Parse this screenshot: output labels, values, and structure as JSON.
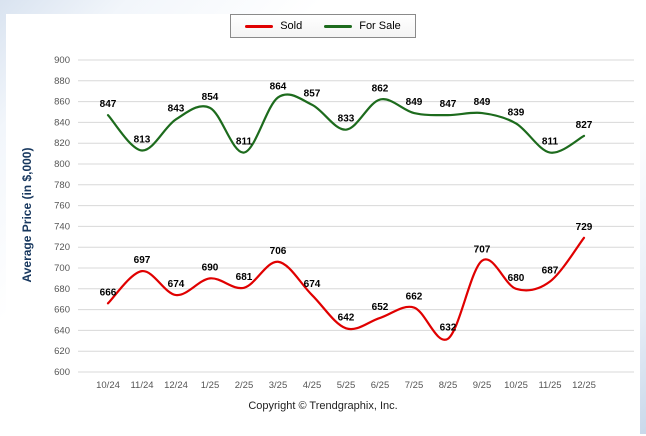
{
  "legend": {
    "items": [
      {
        "label": "Sold",
        "color": "#e00000"
      },
      {
        "label": "For Sale",
        "color": "#1d6b1d"
      }
    ]
  },
  "axis": {
    "ylabel": "Average Price (in $,000)"
  },
  "footer": {
    "text": "Copyright © Trendgraphix, Inc."
  },
  "chart_data": {
    "type": "line",
    "title": "",
    "xlabel": "",
    "ylabel": "Average Price (in $,000)",
    "categories": [
      "10/24",
      "11/24",
      "12/24",
      "1/25",
      "2/25",
      "3/25",
      "4/25",
      "5/25",
      "6/25",
      "7/25",
      "8/25",
      "9/25",
      "10/25",
      "11/25",
      "12/25"
    ],
    "series": [
      {
        "name": "Sold",
        "color": "#e00000",
        "values": [
          666,
          697,
          674,
          690,
          681,
          706,
          674,
          642,
          652,
          662,
          632,
          707,
          680,
          687,
          729
        ]
      },
      {
        "name": "For Sale",
        "color": "#1d6b1d",
        "values": [
          847,
          813,
          843,
          854,
          811,
          864,
          857,
          833,
          862,
          849,
          847,
          849,
          839,
          811,
          827
        ]
      }
    ],
    "ylim": [
      600,
      900
    ],
    "ytick_step": 20,
    "grid": true,
    "grid_color": "#d8d8d8",
    "tick_color": "#555555",
    "label_color": "#000000",
    "legend_position": "top",
    "line_style": "smooth"
  }
}
